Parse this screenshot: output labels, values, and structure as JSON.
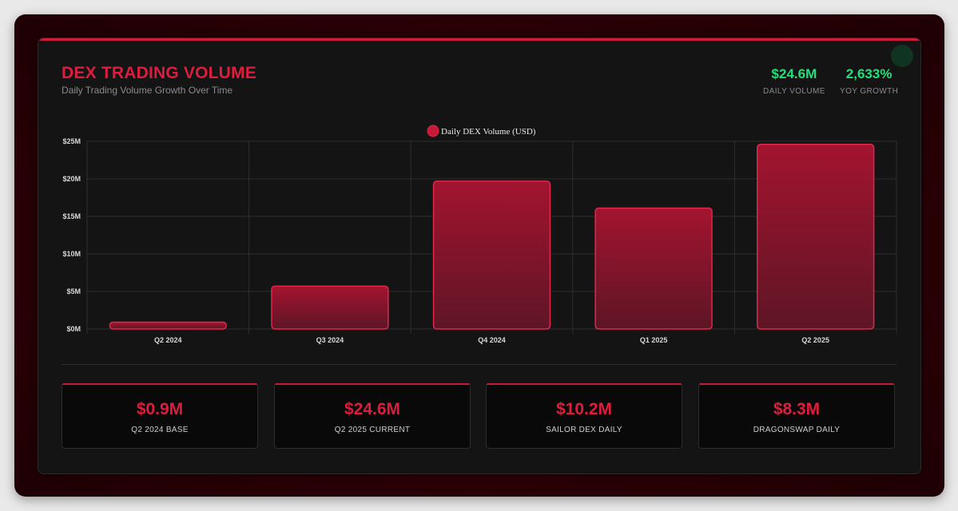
{
  "header": {
    "title": "DEX TRADING VOLUME",
    "subtitle": "Daily Trading Volume Growth Over Time"
  },
  "stats": [
    {
      "value": "$24.6M",
      "label": "DAILY VOLUME"
    },
    {
      "value": "2,633%",
      "label": "YOY GROWTH"
    }
  ],
  "chart_data": {
    "type": "bar",
    "categories": [
      "Q2 2024",
      "Q3 2024",
      "Q4 2024",
      "Q1 2025",
      "Q2 2025"
    ],
    "series": [
      {
        "name": "Daily DEX Volume (USD)",
        "values": [
          0.9,
          5.7,
          19.7,
          16.1,
          24.6
        ]
      }
    ],
    "unit": "M",
    "ylim": [
      0,
      25
    ],
    "yticks": [
      0,
      5,
      10,
      15,
      20,
      25
    ],
    "ytick_labels": [
      "$0M",
      "$5M",
      "$10M",
      "$15M",
      "$20M",
      "$25M"
    ],
    "legend_position": "top",
    "grid": true,
    "colors": {
      "bar": "#c8193a",
      "bar_border": "#e0284a",
      "grid": "#2e2e2e"
    }
  },
  "summary_cards": [
    {
      "value": "$0.9M",
      "label": "Q2 2024 BASE"
    },
    {
      "value": "$24.6M",
      "label": "Q2 2025 CURRENT"
    },
    {
      "value": "$10.2M",
      "label": "SAILOR DEX DAILY"
    },
    {
      "value": "$8.3M",
      "label": "DRAGONSWAP DAILY"
    }
  ]
}
